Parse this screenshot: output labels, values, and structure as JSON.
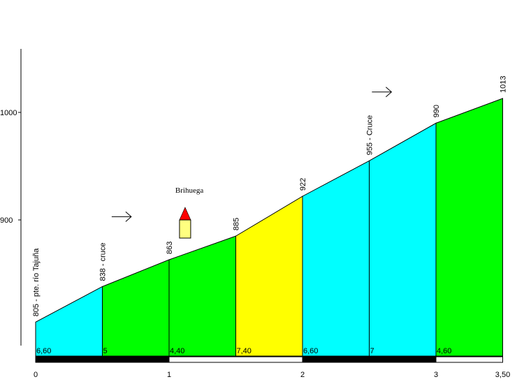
{
  "chart_data": {
    "type": "area",
    "title": "",
    "xlabel": "",
    "ylabel": "",
    "xlim": [
      0,
      3.5
    ],
    "ylim": [
      775,
      1060
    ],
    "y_ticks": [
      "900",
      "1000"
    ],
    "x_ticks": [
      "0",
      "1",
      "2",
      "3",
      "3,50"
    ],
    "grid": false,
    "points": [
      {
        "x": 0.0,
        "y": 805,
        "label": "805 - pte. río Tajuña"
      },
      {
        "x": 0.5,
        "y": 838,
        "label": "838 - cruce"
      },
      {
        "x": 1.0,
        "y": 863,
        "label": "863"
      },
      {
        "x": 1.5,
        "y": 885,
        "label": "885"
      },
      {
        "x": 2.0,
        "y": 922,
        "label": "922"
      },
      {
        "x": 2.5,
        "y": 955,
        "label": "955 - Cruce"
      },
      {
        "x": 3.0,
        "y": 990,
        "label": "990"
      },
      {
        "x": 3.5,
        "y": 1013,
        "label": "1013"
      }
    ],
    "segments": [
      {
        "gradient": "6,60",
        "color": "#00ffff"
      },
      {
        "gradient": "5",
        "color": "#00ff00"
      },
      {
        "gradient": "4,40",
        "color": "#00ff00"
      },
      {
        "gradient": "7,40",
        "color": "#ffff00"
      },
      {
        "gradient": "6,60",
        "color": "#00ffff"
      },
      {
        "gradient": "7",
        "color": "#00ffff"
      },
      {
        "gradient": "4,60",
        "color": "#00ff00"
      }
    ],
    "annotations": [
      {
        "type": "town",
        "text": "Brihuega",
        "x": 1.12,
        "icon": "house-icon"
      },
      {
        "type": "direction-arrow",
        "x": 0.57,
        "y": 903
      },
      {
        "type": "direction-arrow",
        "x": 2.52,
        "y": 1019
      }
    ]
  }
}
